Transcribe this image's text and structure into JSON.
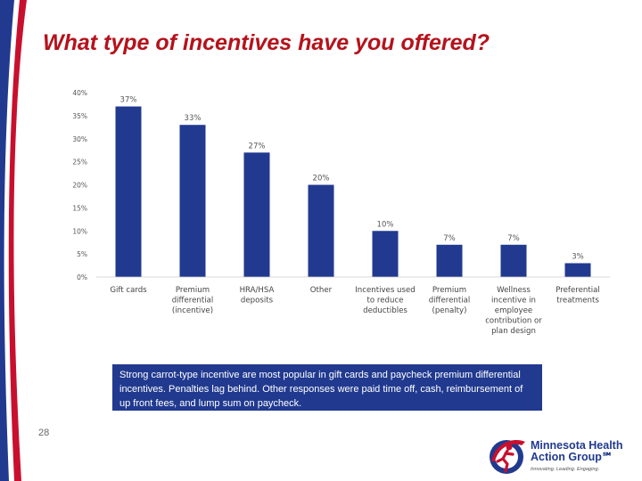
{
  "slide": {
    "title": "What type of incentives have you offered?",
    "summary": "Strong carrot-type incentive are most popular in gift cards and paycheck premium differential incentives. Penalties lag behind. Other responses were paid time off, cash, reimbursement of up front fees, and lump sum on paycheck.",
    "page_number": "28"
  },
  "logo": {
    "name": "Minnesota Health Action Group℠",
    "tagline": "Innovating. Leading. Engaging."
  },
  "colors": {
    "bar": "#213a8f",
    "title": "#b5121b",
    "swoosh_red": "#c8102e",
    "swoosh_blue": "#213a8f"
  },
  "chart_data": {
    "type": "bar",
    "title": "",
    "xlabel": "",
    "ylabel": "",
    "ylim": [
      0,
      40
    ],
    "yticks": [
      0,
      5,
      10,
      15,
      20,
      25,
      30,
      35,
      40
    ],
    "ytick_labels": [
      "0%",
      "5%",
      "10%",
      "15%",
      "20%",
      "25%",
      "30%",
      "35%",
      "40%"
    ],
    "grid": false,
    "categories": [
      [
        "Gift cards"
      ],
      [
        "Premium",
        "differential",
        "(incentive)"
      ],
      [
        "HRA/HSA",
        "deposits"
      ],
      [
        "Other"
      ],
      [
        "Incentives used",
        "to reduce",
        "deductibles"
      ],
      [
        "Premium",
        "differential",
        "(penalty)"
      ],
      [
        "Wellness",
        "incentive in",
        "employee",
        "contribution or",
        "plan design"
      ],
      [
        "Preferential",
        "treatments"
      ]
    ],
    "values": [
      37,
      33,
      27,
      20,
      10,
      7,
      7,
      3
    ],
    "data_labels": [
      "37%",
      "33%",
      "27%",
      "20%",
      "10%",
      "7%",
      "7%",
      "3%"
    ]
  }
}
